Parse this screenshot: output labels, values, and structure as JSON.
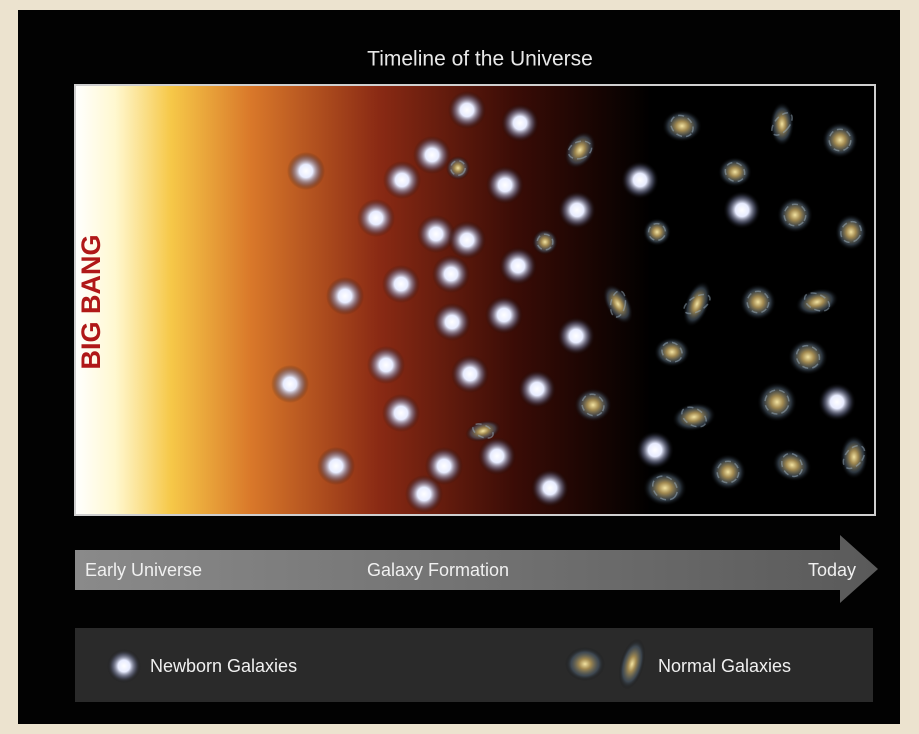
{
  "title": "Timeline of the Universe",
  "side_label": "BIG BANG",
  "timeline": {
    "labels": [
      "Early Universe",
      "Galaxy Formation",
      "Today"
    ]
  },
  "legend": {
    "items": [
      "Newborn Galaxies",
      "Normal Galaxies"
    ]
  }
}
